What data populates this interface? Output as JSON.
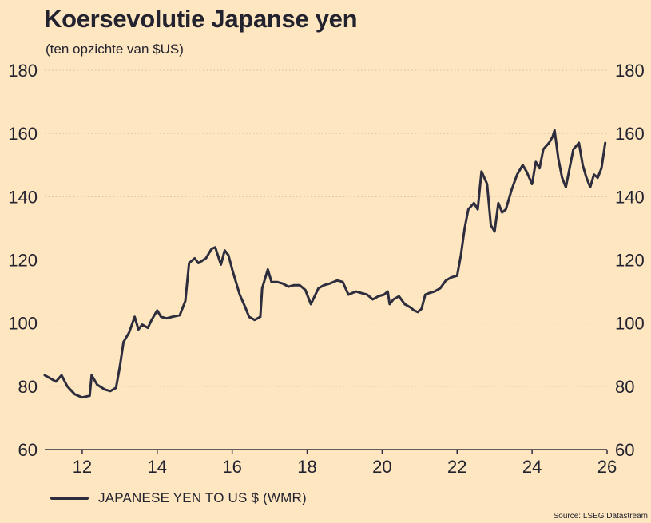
{
  "colors": {
    "background": "#fde6c0",
    "line": "#2d2d3e",
    "grid": "#cfc0a6",
    "text": "#23232f"
  },
  "chart_data": {
    "type": "line",
    "title": "Koersevolutie Japanse yen",
    "subtitle": "(ten opzichte van $US)",
    "xlabel": "",
    "ylabel": "",
    "xlim": [
      11,
      26
    ],
    "ylim": [
      60,
      180
    ],
    "y_ticks": [
      "60",
      "80",
      "100",
      "120",
      "140",
      "160",
      "180"
    ],
    "x_tick_labels": [
      "12",
      "14",
      "16",
      "18",
      "20",
      "22",
      "24",
      "26"
    ],
    "grid": "horizontal dotted",
    "legend_position": "bottom-left",
    "source": "Source: LSEG Datastream",
    "series": [
      {
        "name": "JAPANESE YEN TO US $ (WMR)",
        "x": [
          11.0,
          11.15,
          11.3,
          11.45,
          11.6,
          11.8,
          12.0,
          12.2,
          12.25,
          12.4,
          12.6,
          12.75,
          12.9,
          13.0,
          13.1,
          13.25,
          13.4,
          13.5,
          13.6,
          13.75,
          13.85,
          14.0,
          14.1,
          14.25,
          14.4,
          14.6,
          14.75,
          14.85,
          15.0,
          15.1,
          15.3,
          15.45,
          15.55,
          15.7,
          15.8,
          15.9,
          16.0,
          16.1,
          16.2,
          16.35,
          16.45,
          16.6,
          16.75,
          16.8,
          16.95,
          17.05,
          17.2,
          17.35,
          17.5,
          17.65,
          17.8,
          17.95,
          18.1,
          18.3,
          18.45,
          18.6,
          18.8,
          18.95,
          19.1,
          19.3,
          19.45,
          19.6,
          19.75,
          19.9,
          20.05,
          20.15,
          20.2,
          20.3,
          20.45,
          20.6,
          20.75,
          20.85,
          20.95,
          21.05,
          21.15,
          21.25,
          21.4,
          21.55,
          21.7,
          21.85,
          22.0,
          22.1,
          22.2,
          22.3,
          22.45,
          22.55,
          22.65,
          22.8,
          22.9,
          23.0,
          23.1,
          23.2,
          23.3,
          23.45,
          23.6,
          23.75,
          23.85,
          24.0,
          24.1,
          24.2,
          24.3,
          24.45,
          24.55,
          24.6,
          24.7,
          24.8,
          24.9,
          25.0,
          25.1,
          25.25,
          25.35,
          25.45,
          25.55,
          25.65,
          25.75,
          25.85,
          25.95
        ],
        "values": [
          83.5,
          82.5,
          81.5,
          83.5,
          80.0,
          77.5,
          76.5,
          77.0,
          83.5,
          80.5,
          79.0,
          78.5,
          79.5,
          86.0,
          94.0,
          97.0,
          102.0,
          98.0,
          99.5,
          98.5,
          101.0,
          104.0,
          102.0,
          101.5,
          102.0,
          102.5,
          107.0,
          119.0,
          120.5,
          119.0,
          120.5,
          123.5,
          124.0,
          118.5,
          123.0,
          121.5,
          117.0,
          113.0,
          109.0,
          105.0,
          102.0,
          101.0,
          102.0,
          111.0,
          117.0,
          113.0,
          113.0,
          112.5,
          111.5,
          112.0,
          112.0,
          110.5,
          106.0,
          111.0,
          112.0,
          112.5,
          113.5,
          113.0,
          109.0,
          110.0,
          109.5,
          109.0,
          107.5,
          108.5,
          109.0,
          110.0,
          106.0,
          107.5,
          108.5,
          106.0,
          105.0,
          104.0,
          103.5,
          104.5,
          109.0,
          109.5,
          110.0,
          111.0,
          113.5,
          114.5,
          115.0,
          121.5,
          130.0,
          136.0,
          138.0,
          136.0,
          148.0,
          144.0,
          131.0,
          129.0,
          138.0,
          135.0,
          136.0,
          142.0,
          147.0,
          150.0,
          148.0,
          144.0,
          151.0,
          149.0,
          155.0,
          157.0,
          159.0,
          161.0,
          152.0,
          146.0,
          143.0,
          149.0,
          155.0,
          157.0,
          150.0,
          146.0,
          143.0,
          147.0,
          146.0,
          149.0,
          157.0
        ]
      }
    ]
  }
}
